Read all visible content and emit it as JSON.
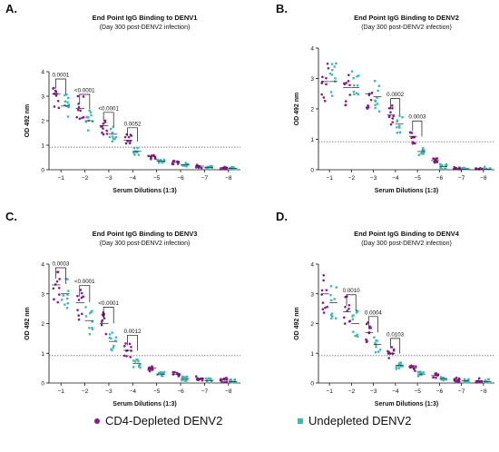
{
  "colors": {
    "cd4": "#8a1a8c",
    "undepleted": "#3fbab3"
  },
  "legend": {
    "cd4": "CD4-Depleted DENV2",
    "undepleted": "Undepleted DENV2"
  },
  "chart_data": [
    {
      "type": "scatter",
      "panel_label": "A.",
      "title": "End Point IgG Binding to DENV1",
      "subtitle": "(Day 300 post-DENV2 infection)",
      "xlabel": "Serum Dilutions (1:3)",
      "ylabel": "OD 492 nm",
      "categories": [
        "−1",
        "−2",
        "−3",
        "−4",
        "−5",
        "−6",
        "−7",
        "−8"
      ],
      "ylim": [
        0,
        4
      ],
      "yticks": [
        0,
        1,
        2,
        3,
        4
      ],
      "threshold": 0.92,
      "series": [
        {
          "name": "CD4-Depleted DENV2",
          "medians": [
            3.1,
            2.5,
            1.8,
            1.2,
            0.55,
            0.3,
            0.15,
            0.08
          ]
        },
        {
          "name": "Undepleted DENV2",
          "medians": [
            2.6,
            2.0,
            1.45,
            0.75,
            0.35,
            0.2,
            0.1,
            0.05
          ]
        }
      ],
      "comparisons": [
        {
          "category": "−1",
          "p": "0.0001"
        },
        {
          "category": "−2",
          "p": "<0.0001"
        },
        {
          "category": "−3",
          "p": "<0.0001"
        },
        {
          "category": "−4",
          "p": "0.0052"
        }
      ]
    },
    {
      "type": "scatter",
      "panel_label": "B.",
      "title": "End Point IgG Binding to DENV2",
      "subtitle": "(Day 300 post-DENV2 infection)",
      "xlabel": "Serum Dilutions (1:3)",
      "ylabel": "OD 492 nm",
      "categories": [
        "−1",
        "−2",
        "−3",
        "−4",
        "−5",
        "−6",
        "−7",
        "−8"
      ],
      "ylim": [
        0,
        4
      ],
      "yticks": [
        0,
        1,
        2,
        3,
        4
      ],
      "threshold": 0.92,
      "series": [
        {
          "name": "CD4-Depleted DENV2",
          "medians": [
            2.9,
            2.7,
            2.5,
            1.8,
            1.1,
            0.3,
            0.03,
            0.02
          ]
        },
        {
          "name": "Undepleted DENV2",
          "medians": [
            2.9,
            2.7,
            2.4,
            1.5,
            0.6,
            0.1,
            0.02,
            0.02
          ]
        }
      ],
      "comparisons": [
        {
          "category": "−4",
          "p": "0.0002"
        },
        {
          "category": "−5",
          "p": "0.0003"
        }
      ]
    },
    {
      "type": "scatter",
      "panel_label": "C.",
      "title": "End Point IgG Binding to DENV3",
      "subtitle": "(Day 300 post-DENV2 infection)",
      "xlabel": "Serum Dilutions (1:3)",
      "ylabel": "OD 492 nm",
      "categories": [
        "−1",
        "−2",
        "−3",
        "−4",
        "−5",
        "−6",
        "−7",
        "−8"
      ],
      "ylim": [
        0,
        4
      ],
      "yticks": [
        0,
        1,
        2,
        3,
        4
      ],
      "threshold": 0.92,
      "series": [
        {
          "name": "CD4-Depleted DENV2",
          "medians": [
            3.3,
            2.7,
            2.0,
            1.1,
            0.5,
            0.3,
            0.15,
            0.1
          ]
        },
        {
          "name": "Undepleted DENV2",
          "medians": [
            3.0,
            2.1,
            1.4,
            0.65,
            0.3,
            0.15,
            0.08,
            0.05
          ]
        }
      ],
      "comparisons": [
        {
          "category": "−1",
          "p": "0.0003"
        },
        {
          "category": "−2",
          "p": "<0.0001"
        },
        {
          "category": "−3",
          "p": "<0.0001"
        },
        {
          "category": "−4",
          "p": "0.0012"
        }
      ]
    },
    {
      "type": "scatter",
      "panel_label": "D.",
      "title": "End Point IgG Binding to DENV4",
      "subtitle": "(Day 300 post-DENV2 infection)",
      "xlabel": "Serum Dilutions (1:3)",
      "ylabel": "OD 492 nm",
      "categories": [
        "−1",
        "−2",
        "−3",
        "−4",
        "−5",
        "−6",
        "−7",
        "−8"
      ],
      "ylim": [
        0,
        4
      ],
      "yticks": [
        0,
        1,
        2,
        3,
        4
      ],
      "threshold": 0.92,
      "series": [
        {
          "name": "CD4-Depleted DENV2",
          "medians": [
            3.0,
            2.4,
            1.7,
            1.0,
            0.5,
            0.25,
            0.12,
            0.08
          ]
        },
        {
          "name": "Undepleted DENV2",
          "medians": [
            2.7,
            2.0,
            1.3,
            0.6,
            0.3,
            0.15,
            0.08,
            0.05
          ]
        }
      ],
      "comparisons": [
        {
          "category": "−2",
          "p": "0.0010"
        },
        {
          "category": "−3",
          "p": "0.0004"
        },
        {
          "category": "−4",
          "p": "0.0103"
        }
      ]
    }
  ]
}
